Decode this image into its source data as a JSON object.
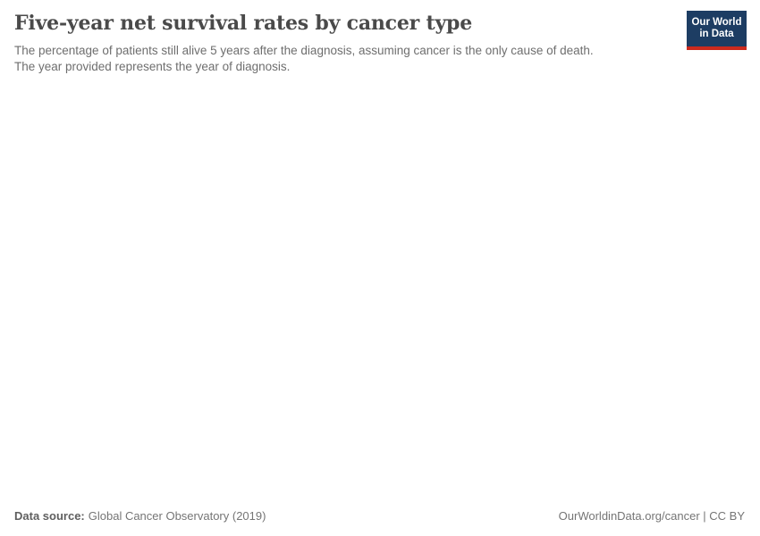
{
  "header": {
    "title": "Five-year net survival rates by cancer type",
    "subtitle_line1": "The percentage of patients still alive 5 years after the diagnosis, assuming cancer is the only cause of death.",
    "subtitle_line2": "The year provided represents the year of diagnosis."
  },
  "logo": {
    "line1": "Our World",
    "line2": "in Data",
    "bg_color": "#1d3d63",
    "accent_color": "#cc2a1d",
    "text_color": "#ffffff"
  },
  "footer": {
    "data_source_label": "Data source:",
    "data_source_value": "Global Cancer Observatory (2019)",
    "attribution": "OurWorldinData.org/cancer | CC BY"
  },
  "colors": {
    "background": "#ffffff",
    "title_text": "#4a4a4a",
    "subtitle_text": "#6e6e6e",
    "footer_text": "#757575"
  },
  "chart_data": {
    "type": "empty",
    "title": "Five-year net survival rates by cancer type",
    "subtitle": "The percentage of patients still alive 5 years after the diagnosis, assuming cancer is the only cause of death. The year provided represents the year of diagnosis.",
    "source": "Global Cancer Observatory (2019)",
    "attribution": "OurWorldinData.org/cancer | CC BY",
    "series": [],
    "note": "Plot area is blank in the screenshot; no axes, data points, legend, or gridlines are rendered."
  }
}
